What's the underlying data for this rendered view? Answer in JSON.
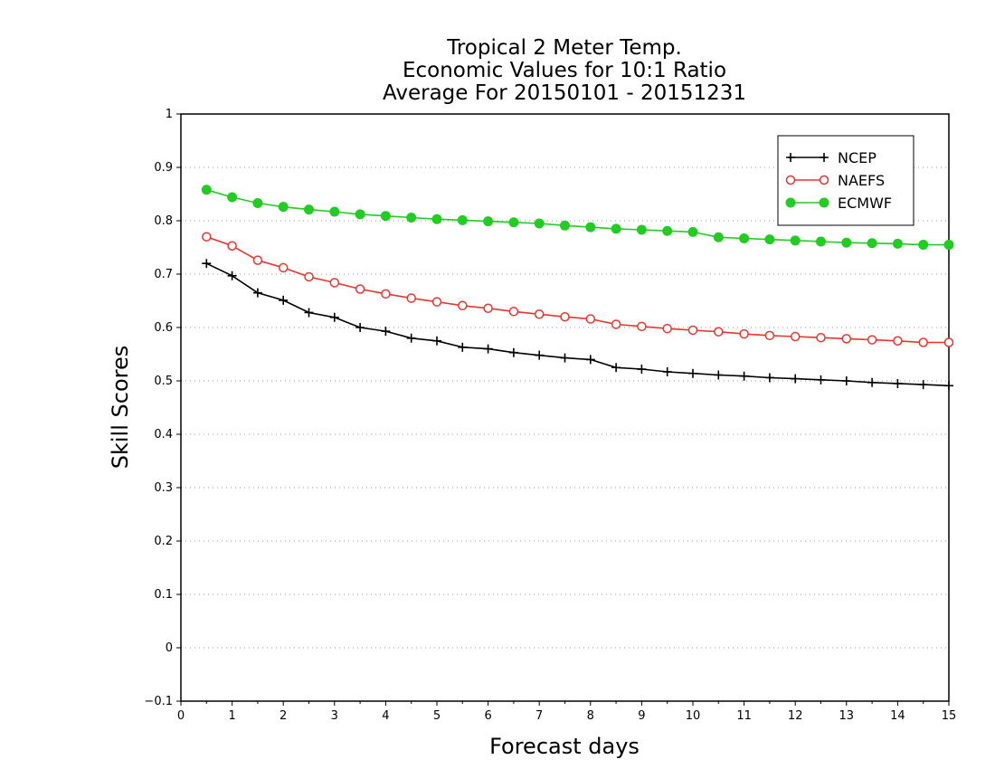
{
  "chart_data": {
    "type": "line",
    "title_lines": [
      "Tropical 2 Meter Temp.",
      "Economic Values for 10:1 Ratio",
      "Average For 20150101 - 20151231"
    ],
    "xlabel": "Forecast days",
    "ylabel": "Skill Scores",
    "xlim": [
      0,
      15
    ],
    "ylim": [
      -0.1,
      1
    ],
    "x_ticks": [
      "0",
      "1",
      "2",
      "3",
      "4",
      "5",
      "6",
      "7",
      "8",
      "9",
      "10",
      "11",
      "12",
      "13",
      "14",
      "15"
    ],
    "y_ticks": [
      "−0.1",
      "0",
      "0.1",
      "0.2",
      "0.3",
      "0.4",
      "0.5",
      "0.6",
      "0.7",
      "0.8",
      "0.9",
      "1"
    ],
    "grid": "horizontal dotted",
    "legend_position": "top-right",
    "x": [
      0.5,
      1,
      1.5,
      2,
      2.5,
      3,
      3.5,
      4,
      4.5,
      5,
      5.5,
      6,
      6.5,
      7,
      7.5,
      8,
      8.5,
      9,
      9.5,
      10,
      10.5,
      11,
      11.5,
      12,
      12.5,
      13,
      13.5,
      14,
      14.5,
      15
    ],
    "series": [
      {
        "name": "NCEP",
        "color": "#000000",
        "marker": "plus",
        "values": [
          0.72,
          0.697,
          0.665,
          0.651,
          0.628,
          0.619,
          0.6,
          0.593,
          0.58,
          0.575,
          0.563,
          0.56,
          0.553,
          0.548,
          0.543,
          0.54,
          0.525,
          0.522,
          0.517,
          0.514,
          0.511,
          0.509,
          0.506,
          0.504,
          0.502,
          0.5,
          0.497,
          0.495,
          0.493,
          0.491
        ]
      },
      {
        "name": "NAEFS",
        "color": "#e8352f",
        "marker": "open-circle",
        "values": [
          0.77,
          0.753,
          0.726,
          0.712,
          0.695,
          0.684,
          0.672,
          0.663,
          0.655,
          0.648,
          0.641,
          0.636,
          0.63,
          0.625,
          0.62,
          0.616,
          0.606,
          0.602,
          0.598,
          0.595,
          0.592,
          0.588,
          0.585,
          0.583,
          0.581,
          0.579,
          0.577,
          0.575,
          0.572,
          0.572
        ]
      },
      {
        "name": "ECMWF",
        "color": "#22cc22",
        "marker": "filled-circle",
        "values": [
          0.858,
          0.844,
          0.833,
          0.826,
          0.821,
          0.817,
          0.812,
          0.809,
          0.806,
          0.803,
          0.801,
          0.799,
          0.797,
          0.795,
          0.791,
          0.788,
          0.785,
          0.783,
          0.781,
          0.779,
          0.769,
          0.767,
          0.765,
          0.763,
          0.761,
          0.759,
          0.758,
          0.757,
          0.755,
          0.755
        ]
      }
    ]
  }
}
